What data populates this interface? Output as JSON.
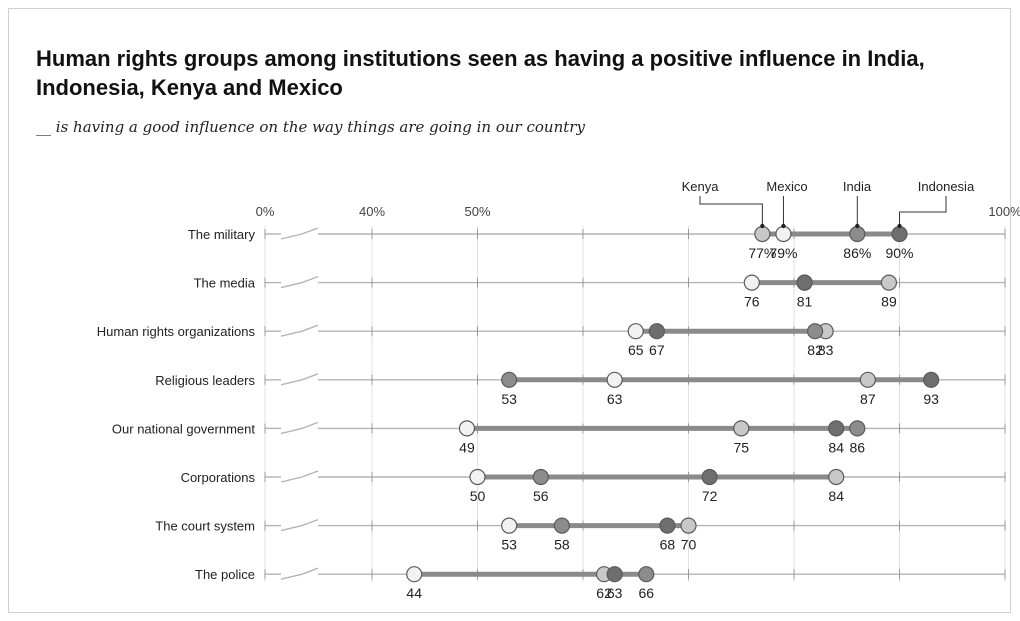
{
  "chart_data": {
    "type": "dot",
    "title": "Human rights groups among institutions seen as having a positive influence in India, Indonesia, Kenya and Mexico",
    "subtitle": "__ is having a good influence on the way things are going in our country",
    "x_tick_labels": [
      "0%",
      "40%",
      "50%",
      "100%"
    ],
    "x_ticks": [
      40,
      50,
      60,
      70,
      80,
      90,
      100
    ],
    "axis_break": true,
    "xlim": [
      30,
      100
    ],
    "series": [
      {
        "name": "Kenya",
        "color": "#c8c8c8"
      },
      {
        "name": "Mexico",
        "color": "#f2f2f2"
      },
      {
        "name": "India",
        "color": "#8c8c8c"
      },
      {
        "name": "Indonesia",
        "color": "#6e6e6e"
      }
    ],
    "categories": [
      {
        "label": "The military",
        "values": {
          "Kenya": 77,
          "Mexico": 79,
          "India": 86,
          "Indonesia": 90
        },
        "value_labels": [
          "77%",
          "79%",
          "86%",
          "90%"
        ]
      },
      {
        "label": "The media",
        "values": {
          "Kenya": 89,
          "Mexico": 76,
          "India": 81,
          "Indonesia": 81
        },
        "value_labels": [
          "76",
          "81",
          "89"
        ]
      },
      {
        "label": "Human rights organizations",
        "values": {
          "Kenya": 83,
          "Mexico": 65,
          "India": 82,
          "Indonesia": 67
        },
        "value_labels": [
          "65",
          "67",
          "82",
          "83"
        ]
      },
      {
        "label": "Religious leaders",
        "values": {
          "Kenya": 87,
          "Mexico": 63,
          "India": 53,
          "Indonesia": 93
        },
        "value_labels": [
          "53",
          "63",
          "87",
          "93"
        ]
      },
      {
        "label": "Our national government",
        "values": {
          "Kenya": 75,
          "Mexico": 49,
          "India": 86,
          "Indonesia": 84
        },
        "value_labels": [
          "49",
          "75",
          "84",
          "86"
        ]
      },
      {
        "label": "Corporations",
        "values": {
          "Kenya": 84,
          "Mexico": 50,
          "India": 56,
          "Indonesia": 72
        },
        "value_labels": [
          "50",
          "56",
          "72",
          "84"
        ]
      },
      {
        "label": "The court system",
        "values": {
          "Kenya": 70,
          "Mexico": 53,
          "India": 58,
          "Indonesia": 68
        },
        "value_labels": [
          "53",
          "58",
          "68",
          "70"
        ]
      },
      {
        "label": "The police",
        "values": {
          "Kenya": 62,
          "Mexico": 44,
          "India": 66,
          "Indonesia": 63
        },
        "value_labels": [
          "44",
          "62",
          "63",
          "66"
        ]
      }
    ]
  }
}
